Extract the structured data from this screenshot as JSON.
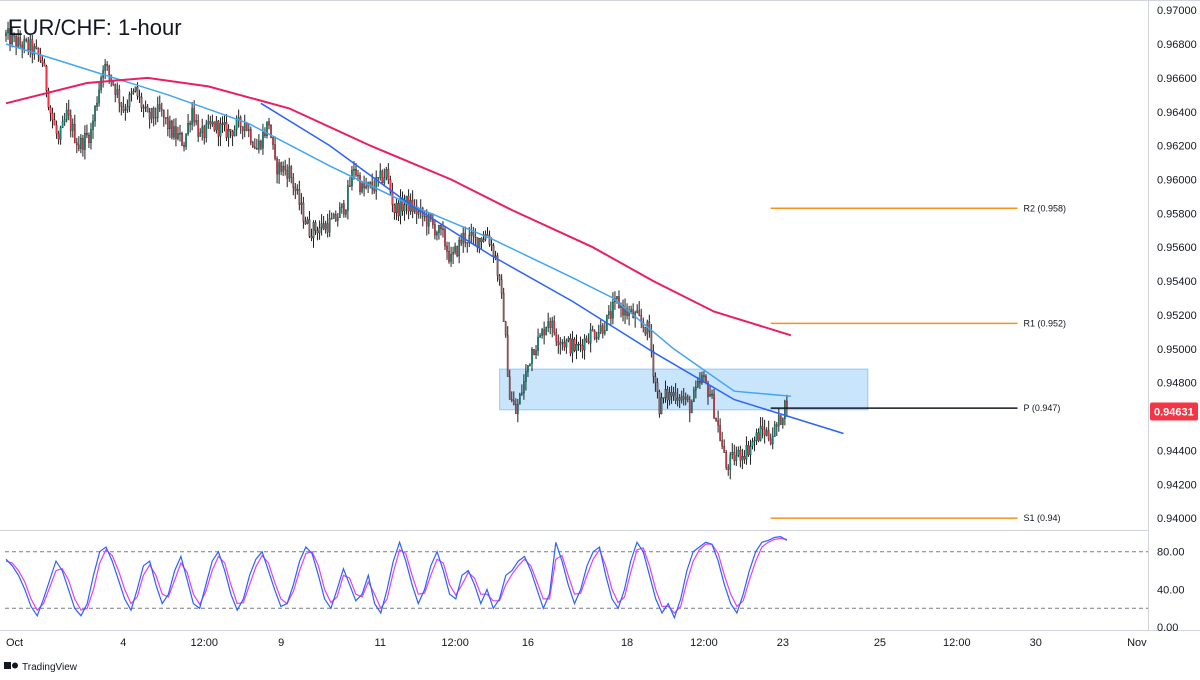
{
  "colors": {
    "bull": "#089981",
    "bear": "#f23645",
    "wick": "#1f1f1f",
    "ma_fast": "#2962ff",
    "ma_fast2": "#42a5f5",
    "ma_slow": "#e91e63",
    "levels": "#f7931a",
    "pivot": "#131722",
    "zone": "#bbdefb",
    "price_tag": "#f23645",
    "rsi_k": "#2962ff",
    "rsi_d": "#e040fb",
    "grid": "#d1d4dc"
  },
  "chart_data": [
    {
      "type": "candlestick",
      "title": "EUR/CHF: 1-hour",
      "ylim": [
        0.9393,
        0.9706
      ],
      "price_axis_labels": [
        "0.97000",
        "0.96800",
        "0.96600",
        "0.96400",
        "0.96200",
        "0.96000",
        "0.95800",
        "0.95600",
        "0.95400",
        "0.95200",
        "0.95000",
        "0.94800",
        "0.94400",
        "0.94200",
        "0.94000"
      ],
      "price_axis_values": [
        0.97,
        0.968,
        0.966,
        0.964,
        0.962,
        0.96,
        0.958,
        0.956,
        0.954,
        0.952,
        0.95,
        0.948,
        0.944,
        0.942,
        0.94
      ],
      "time_axis_labels": [
        "Oct",
        "4",
        "12:00",
        "9",
        "11",
        "12:00",
        "16",
        "18",
        "12:00",
        "23",
        "25",
        "12:00",
        "30",
        "Nov"
      ],
      "time_axis_index": [
        0,
        58,
        98,
        136,
        185,
        222,
        258,
        307,
        345,
        384,
        432,
        470,
        509,
        559
      ],
      "last_price": 0.9463,
      "last_price_label": "0.94631",
      "price_path": [
        [
          0,
          0.9685
        ],
        [
          6,
          0.968
        ],
        [
          12,
          0.9678
        ],
        [
          18,
          0.967
        ],
        [
          22,
          0.964
        ],
        [
          26,
          0.9622
        ],
        [
          30,
          0.9638
        ],
        [
          36,
          0.962
        ],
        [
          42,
          0.9628
        ],
        [
          48,
          0.9668
        ],
        [
          52,
          0.966
        ],
        [
          58,
          0.9642
        ],
        [
          64,
          0.9652
        ],
        [
          70,
          0.9636
        ],
        [
          76,
          0.964
        ],
        [
          82,
          0.9628
        ],
        [
          88,
          0.9622
        ],
        [
          92,
          0.9642
        ],
        [
          96,
          0.9625
        ],
        [
          102,
          0.9632
        ],
        [
          110,
          0.9628
        ],
        [
          118,
          0.9634
        ],
        [
          124,
          0.9618
        ],
        [
          130,
          0.9634
        ],
        [
          133,
          0.9608
        ],
        [
          140,
          0.9605
        ],
        [
          146,
          0.9582
        ],
        [
          150,
          0.957
        ],
        [
          156,
          0.9572
        ],
        [
          162,
          0.9575
        ],
        [
          168,
          0.9586
        ],
        [
          172,
          0.9608
        ],
        [
          176,
          0.9594
        ],
        [
          182,
          0.9596
        ],
        [
          188,
          0.9604
        ],
        [
          192,
          0.9582
        ],
        [
          198,
          0.9586
        ],
        [
          204,
          0.958
        ],
        [
          210,
          0.9574
        ],
        [
          216,
          0.9566
        ],
        [
          220,
          0.9552
        ],
        [
          226,
          0.9566
        ],
        [
          232,
          0.9564
        ],
        [
          238,
          0.9568
        ],
        [
          242,
          0.9554
        ],
        [
          246,
          0.952
        ],
        [
          249,
          0.9472
        ],
        [
          252,
          0.9462
        ],
        [
          256,
          0.948
        ],
        [
          260,
          0.95
        ],
        [
          264,
          0.9506
        ],
        [
          268,
          0.9518
        ],
        [
          272,
          0.9508
        ],
        [
          276,
          0.9504
        ],
        [
          282,
          0.95
        ],
        [
          288,
          0.9508
        ],
        [
          294,
          0.9512
        ],
        [
          298,
          0.9518
        ],
        [
          302,
          0.9528
        ],
        [
          306,
          0.9522
        ],
        [
          312,
          0.9518
        ],
        [
          318,
          0.951
        ],
        [
          320,
          0.9488
        ],
        [
          323,
          0.9466
        ],
        [
          326,
          0.9472
        ],
        [
          332,
          0.9474
        ],
        [
          338,
          0.9466
        ],
        [
          344,
          0.9482
        ],
        [
          348,
          0.9474
        ],
        [
          352,
          0.9454
        ],
        [
          356,
          0.943
        ],
        [
          360,
          0.9436
        ],
        [
          366,
          0.944
        ],
        [
          370,
          0.9446
        ],
        [
          374,
          0.9452
        ],
        [
          378,
          0.9448
        ],
        [
          382,
          0.9456
        ],
        [
          386,
          0.947
        ]
      ],
      "overlays": [
        {
          "kind": "sma",
          "color_key": "ma_fast2",
          "points": [
            [
              0,
              0.968
            ],
            [
              40,
              0.9665
            ],
            [
              80,
              0.965
            ],
            [
              120,
              0.9633
            ],
            [
              160,
              0.9608
            ],
            [
              200,
              0.9585
            ],
            [
              240,
              0.9565
            ],
            [
              280,
              0.9542
            ],
            [
              300,
              0.953
            ],
            [
              330,
              0.95
            ],
            [
              360,
              0.9475
            ],
            [
              388,
              0.9472
            ]
          ]
        },
        {
          "kind": "trendline",
          "color_key": "ma_fast",
          "points": [
            [
              126,
              0.9645
            ],
            [
              160,
              0.962
            ],
            [
              200,
              0.9585
            ],
            [
              240,
              0.9555
            ],
            [
              280,
              0.9528
            ],
            [
              320,
              0.9498
            ],
            [
              360,
              0.947
            ],
            [
              414,
              0.945
            ]
          ]
        },
        {
          "kind": "sma",
          "color_key": "ma_slow",
          "points": [
            [
              0,
              0.9645
            ],
            [
              40,
              0.9657
            ],
            [
              70,
              0.966
            ],
            [
              100,
              0.9655
            ],
            [
              140,
              0.9642
            ],
            [
              180,
              0.962
            ],
            [
              220,
              0.96
            ],
            [
              250,
              0.9582
            ],
            [
              290,
              0.956
            ],
            [
              320,
              0.954
            ],
            [
              350,
              0.9522
            ],
            [
              388,
              0.9508
            ]
          ]
        }
      ],
      "levels": [
        {
          "label": "R2 (0.958)",
          "value": 0.9583,
          "from_index": 378,
          "to_index": 500,
          "color_key": "levels"
        },
        {
          "label": "R1 (0.952)",
          "value": 0.9515,
          "from_index": 378,
          "to_index": 500,
          "color_key": "levels"
        },
        {
          "label": "P (0.947)",
          "value": 0.9465,
          "from_index": 378,
          "to_index": 500,
          "color_key": "pivot"
        },
        {
          "label": "S1 (0.94)",
          "value": 0.94,
          "from_index": 378,
          "to_index": 500,
          "color_key": "levels"
        }
      ],
      "zone": {
        "from_index": 244,
        "to_index": 426,
        "y_top": 0.9488,
        "y_bottom": 0.9464
      }
    },
    {
      "type": "line",
      "name": "stochastic",
      "ylim": [
        -3,
        103
      ],
      "axis_labels": [
        "80.00",
        "40.00",
        "0.00"
      ],
      "axis_values": [
        80,
        40,
        0
      ],
      "guide_levels": [
        80,
        20
      ],
      "k_values": [
        72,
        65,
        55,
        40,
        22,
        12,
        30,
        50,
        70,
        60,
        40,
        20,
        12,
        25,
        55,
        80,
        85,
        70,
        50,
        30,
        18,
        40,
        65,
        70,
        45,
        25,
        35,
        60,
        75,
        50,
        25,
        20,
        45,
        70,
        80,
        60,
        35,
        18,
        30,
        55,
        72,
        80,
        60,
        40,
        22,
        25,
        45,
        70,
        85,
        78,
        55,
        30,
        20,
        40,
        62,
        45,
        28,
        35,
        55,
        25,
        15,
        40,
        70,
        90,
        70,
        45,
        25,
        40,
        65,
        80,
        60,
        35,
        30,
        55,
        60,
        45,
        25,
        40,
        20,
        30,
        55,
        60,
        70,
        75,
        60,
        40,
        20,
        35,
        90,
        70,
        45,
        25,
        40,
        65,
        80,
        85,
        55,
        30,
        20,
        40,
        70,
        90,
        80,
        55,
        30,
        15,
        25,
        10,
        30,
        60,
        80,
        85,
        90,
        88,
        70,
        45,
        25,
        15,
        35,
        60,
        80,
        90,
        92,
        95,
        96,
        92
      ],
      "d_values": [
        70,
        68,
        60,
        48,
        30,
        18,
        25,
        42,
        60,
        62,
        50,
        30,
        18,
        20,
        40,
        68,
        82,
        76,
        60,
        40,
        25,
        32,
        55,
        66,
        55,
        35,
        32,
        50,
        68,
        58,
        35,
        24,
        38,
        60,
        75,
        68,
        45,
        25,
        26,
        45,
        64,
        76,
        68,
        48,
        30,
        25,
        38,
        60,
        78,
        80,
        65,
        40,
        26,
        32,
        55,
        52,
        35,
        32,
        48,
        35,
        20,
        30,
        58,
        82,
        78,
        55,
        35,
        36,
        55,
        72,
        68,
        45,
        34,
        45,
        58,
        52,
        35,
        35,
        28,
        28,
        45,
        56,
        65,
        72,
        65,
        48,
        30,
        30,
        72,
        76,
        55,
        35,
        36,
        55,
        72,
        82,
        65,
        40,
        26,
        32,
        58,
        82,
        84,
        65,
        40,
        22,
        22,
        15,
        22,
        48,
        70,
        82,
        88,
        88,
        78,
        55,
        35,
        22,
        28,
        50,
        70,
        85,
        90,
        93,
        94,
        93
      ]
    }
  ],
  "brand": {
    "text": "TradingView"
  }
}
